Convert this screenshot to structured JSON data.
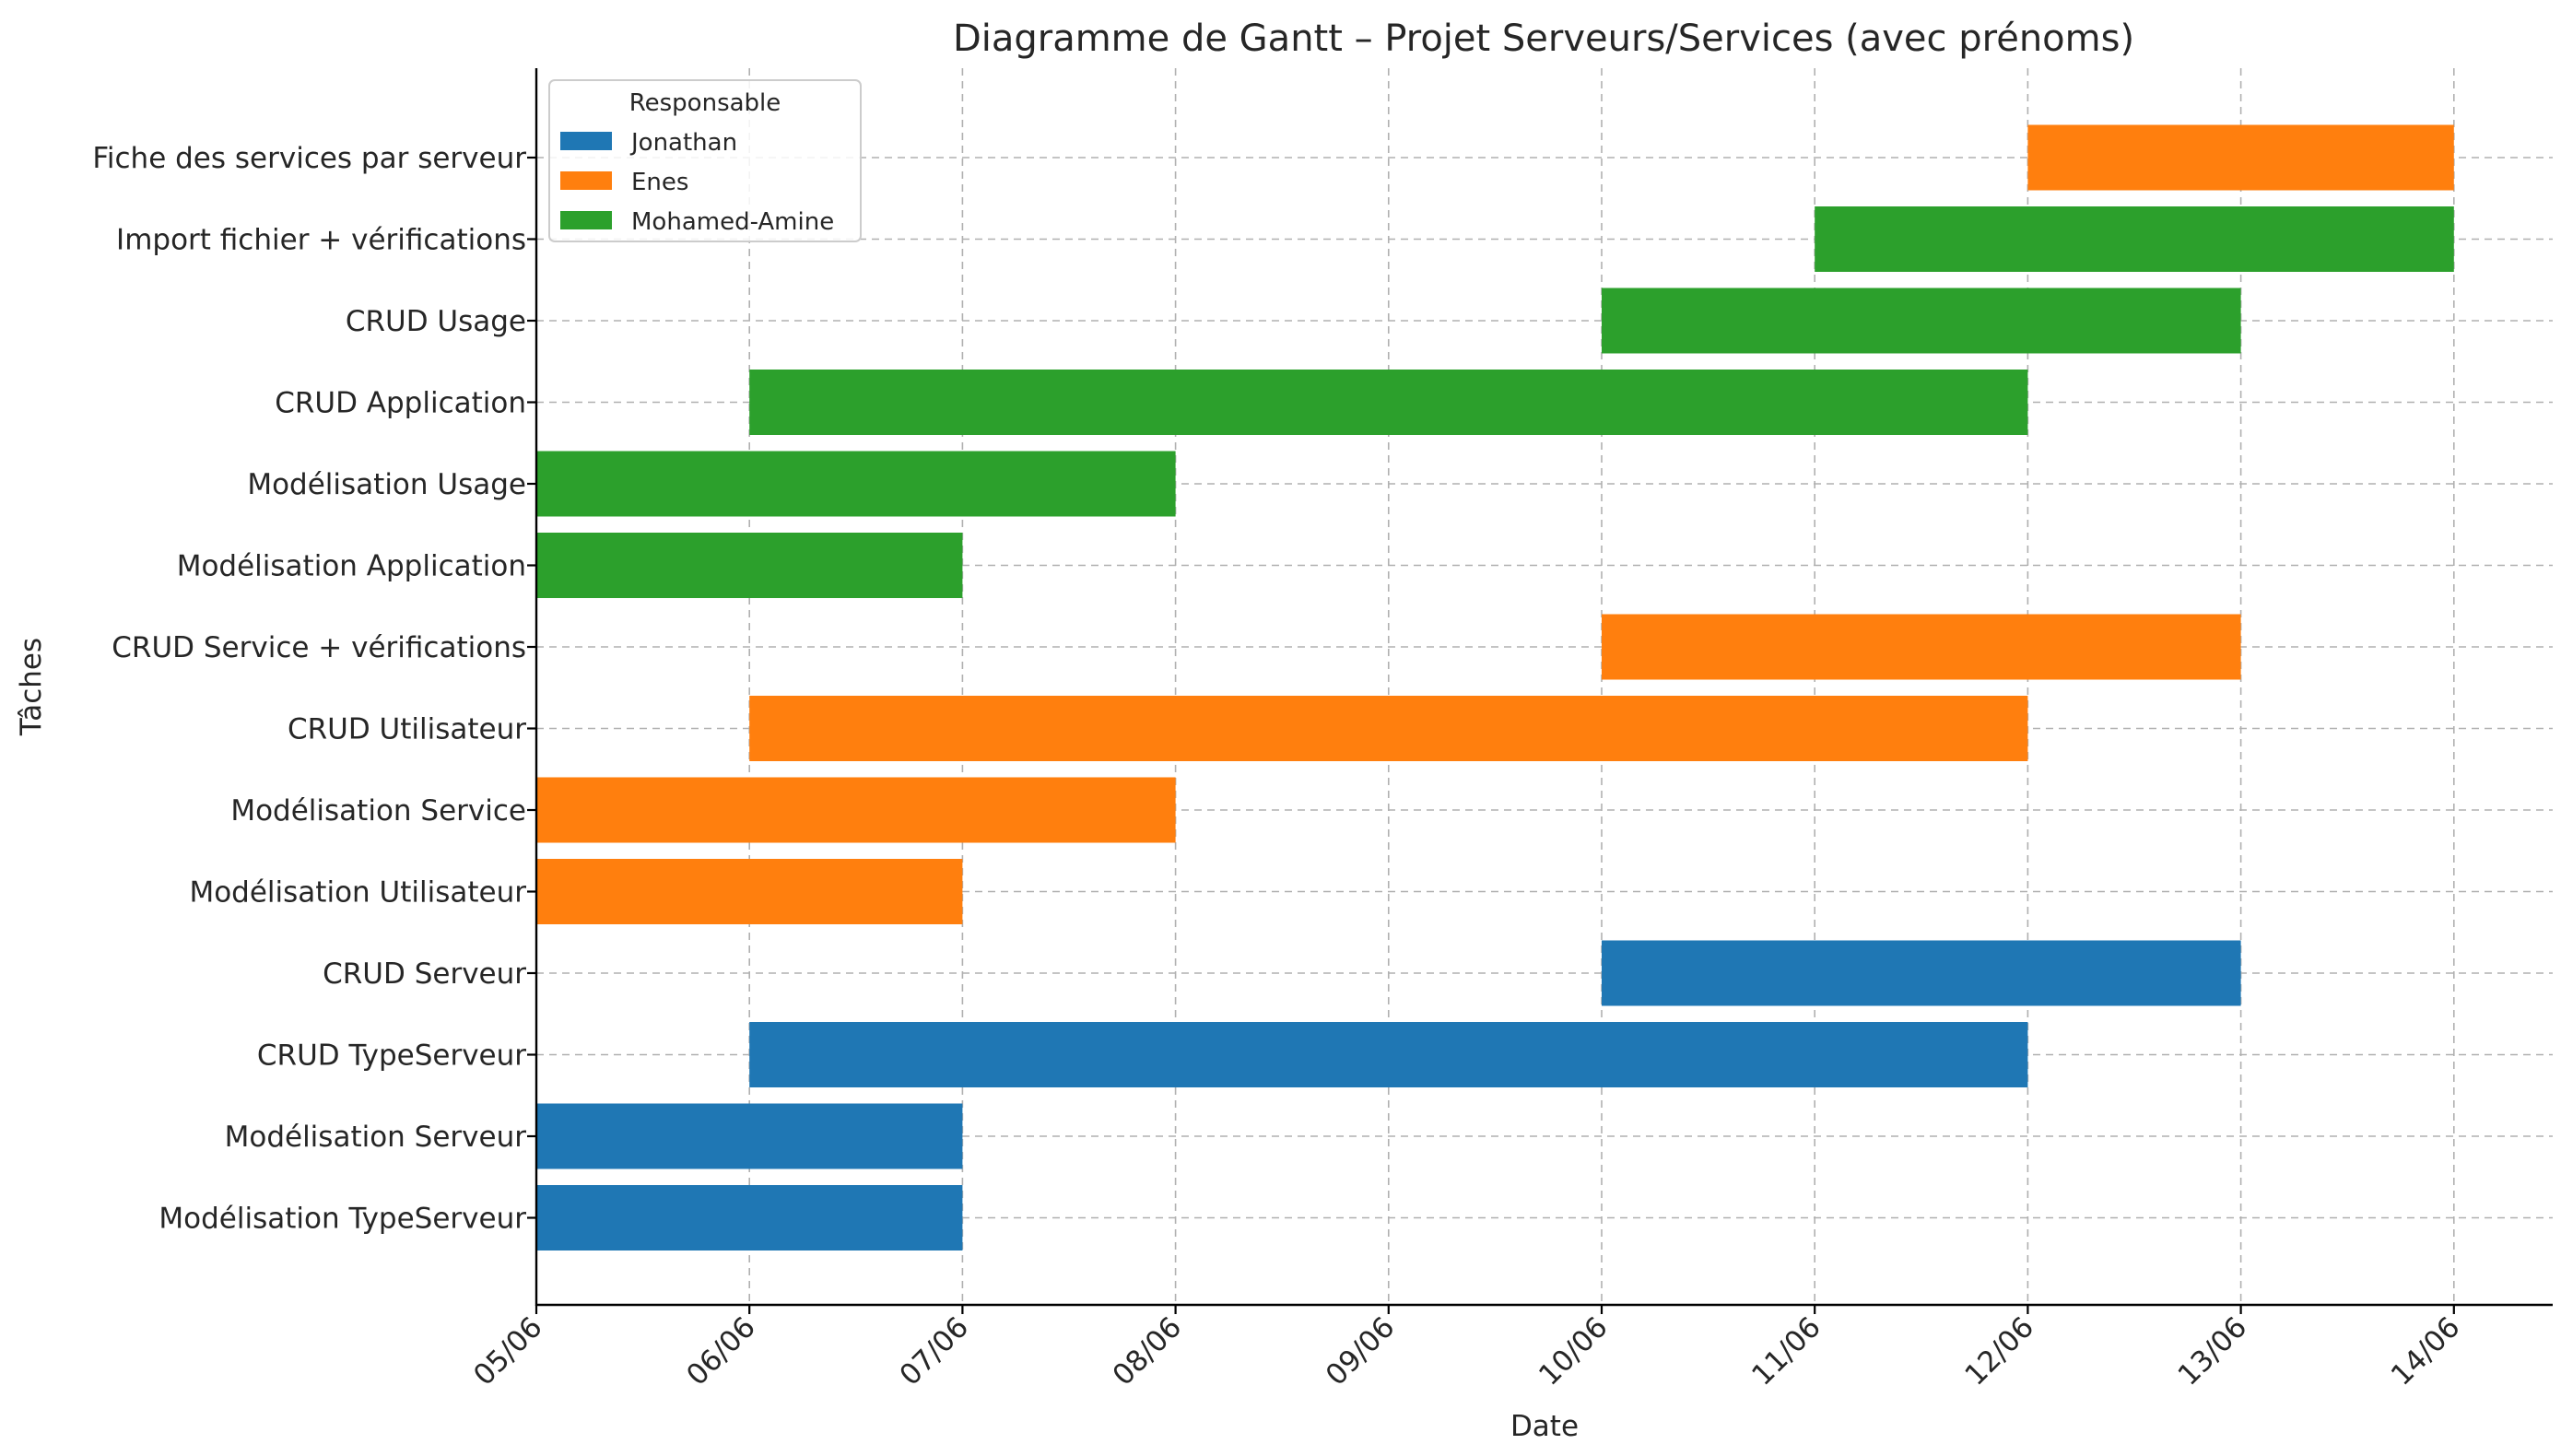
{
  "chart_data": {
    "type": "gantt",
    "title": "Diagramme de Gantt – Projet Serveurs/Services (avec prénoms)",
    "xlabel": "Date",
    "ylabel": "Tâches",
    "x_ticks": [
      "05/06",
      "06/06",
      "07/06",
      "08/06",
      "09/06",
      "10/06",
      "11/06",
      "12/06",
      "13/06",
      "14/06"
    ],
    "x_range": [
      "05/06",
      "14/06"
    ],
    "grid": true,
    "legend": {
      "title": "Responsable",
      "placement": "top-left",
      "entries": [
        {
          "name": "Jonathan",
          "color": "#1f77b4"
        },
        {
          "name": "Enes",
          "color": "#ff7f0e"
        },
        {
          "name": "Mohamed-Amine",
          "color": "#2ca02c"
        }
      ]
    },
    "tasks": [
      {
        "task": "Modélisation TypeServeur",
        "owner": "Jonathan",
        "start": "05/06",
        "end": "07/06"
      },
      {
        "task": "Modélisation Serveur",
        "owner": "Jonathan",
        "start": "05/06",
        "end": "07/06"
      },
      {
        "task": "CRUD TypeServeur",
        "owner": "Jonathan",
        "start": "06/06",
        "end": "12/06"
      },
      {
        "task": "CRUD Serveur",
        "owner": "Jonathan",
        "start": "10/06",
        "end": "13/06"
      },
      {
        "task": "Modélisation Utilisateur",
        "owner": "Enes",
        "start": "05/06",
        "end": "07/06"
      },
      {
        "task": "Modélisation Service",
        "owner": "Enes",
        "start": "05/06",
        "end": "08/06"
      },
      {
        "task": "CRUD Utilisateur",
        "owner": "Enes",
        "start": "06/06",
        "end": "12/06"
      },
      {
        "task": "CRUD Service + vérifications",
        "owner": "Enes",
        "start": "10/06",
        "end": "13/06"
      },
      {
        "task": "Modélisation Application",
        "owner": "Mohamed-Amine",
        "start": "05/06",
        "end": "07/06"
      },
      {
        "task": "Modélisation Usage",
        "owner": "Mohamed-Amine",
        "start": "05/06",
        "end": "08/06"
      },
      {
        "task": "CRUD Application",
        "owner": "Mohamed-Amine",
        "start": "06/06",
        "end": "12/06"
      },
      {
        "task": "CRUD Usage",
        "owner": "Mohamed-Amine",
        "start": "10/06",
        "end": "13/06"
      },
      {
        "task": "Import fichier + vérifications",
        "owner": "Mohamed-Amine",
        "start": "11/06",
        "end": "14/06"
      },
      {
        "task": "Fiche des services par serveur",
        "owner": "Enes",
        "start": "12/06",
        "end": "14/06"
      }
    ]
  }
}
